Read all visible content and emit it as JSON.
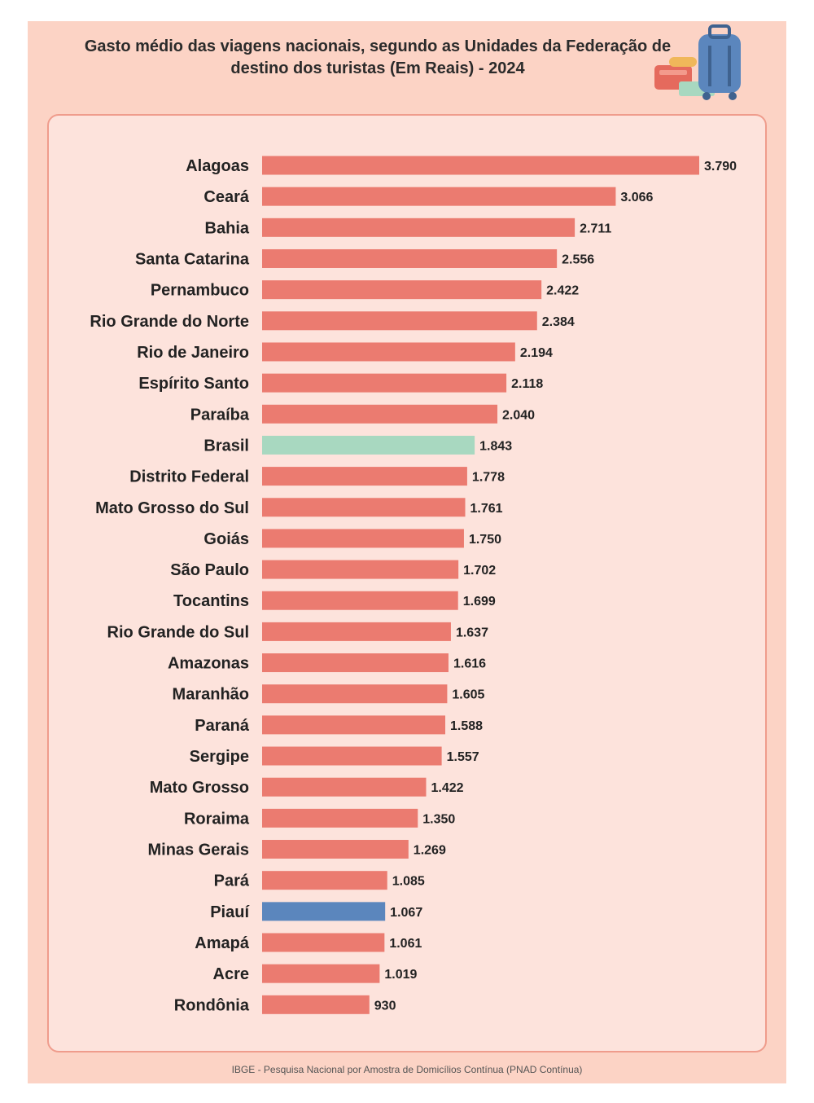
{
  "chart_data": {
    "type": "bar",
    "orientation": "horizontal",
    "title": "Gasto médio das viagens nacionais, segundo as Unidades da Federação de destino dos turistas (Em Reais) - 2024",
    "categories": [
      "Alagoas",
      "Ceará",
      "Bahia",
      "Santa Catarina",
      "Pernambuco",
      "Rio Grande do Norte",
      "Rio de Janeiro",
      "Espírito Santo",
      "Paraíba",
      "Brasil",
      "Distrito Federal",
      "Mato Grosso do Sul",
      "Goiás",
      "São Paulo",
      "Tocantins",
      "Rio Grande do Sul",
      "Amazonas",
      "Maranhão",
      "Paraná",
      "Sergipe",
      "Mato Grosso",
      "Roraima",
      "Minas Gerais",
      "Pará",
      "Piauí",
      "Amapá",
      "Acre",
      "Rondônia"
    ],
    "values": [
      3790,
      3066,
      2711,
      2556,
      2422,
      2384,
      2194,
      2118,
      2040,
      1843,
      1778,
      1761,
      1750,
      1702,
      1699,
      1637,
      1616,
      1605,
      1588,
      1557,
      1422,
      1350,
      1269,
      1085,
      1067,
      1061,
      1019,
      930
    ],
    "value_labels": [
      "3.790",
      "3.066",
      "2.711",
      "2.556",
      "2.422",
      "2.384",
      "2.194",
      "2.118",
      "2.040",
      "1.843",
      "1.778",
      "1.761",
      "1.750",
      "1.702",
      "1.699",
      "1.637",
      "1.616",
      "1.605",
      "1.588",
      "1.557",
      "1.422",
      "1.350",
      "1.269",
      "1.085",
      "1.067",
      "1.061",
      "1.019",
      "930"
    ],
    "xlim": [
      0,
      3790
    ],
    "grid": false,
    "legend": "none",
    "colors": {
      "default": "#eb7b70",
      "Brasil": "#a8d8c0",
      "Piauí": "#5b86bd"
    }
  },
  "source": "IBGE - Pesquisa Nacional por Amostra de Domicílios Contínua (PNAD Contínua)",
  "decoration": {
    "icon": "luggage-icon"
  },
  "colors": {
    "frame_background": "#fcd3c5",
    "panel_background": "#fde3dc",
    "panel_border": "#ef9c8c"
  }
}
